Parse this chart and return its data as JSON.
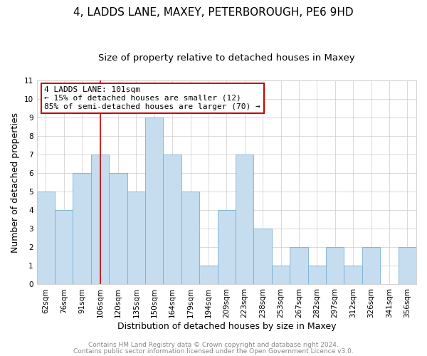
{
  "title": "4, LADDS LANE, MAXEY, PETERBOROUGH, PE6 9HD",
  "subtitle": "Size of property relative to detached houses in Maxey",
  "xlabel": "Distribution of detached houses by size in Maxey",
  "ylabel": "Number of detached properties",
  "bar_color": "#c5ddef",
  "bar_edge_color": "#7bafd4",
  "categories": [
    "62sqm",
    "76sqm",
    "91sqm",
    "106sqm",
    "120sqm",
    "135sqm",
    "150sqm",
    "164sqm",
    "179sqm",
    "194sqm",
    "209sqm",
    "223sqm",
    "238sqm",
    "253sqm",
    "267sqm",
    "282sqm",
    "297sqm",
    "312sqm",
    "326sqm",
    "341sqm",
    "356sqm"
  ],
  "values": [
    5,
    4,
    6,
    7,
    6,
    5,
    9,
    7,
    5,
    1,
    4,
    7,
    3,
    1,
    2,
    1,
    2,
    1,
    2,
    0,
    2
  ],
  "ylim": [
    0,
    11
  ],
  "yticks": [
    0,
    1,
    2,
    3,
    4,
    5,
    6,
    7,
    8,
    9,
    10,
    11
  ],
  "highlight_bar_index": 3,
  "highlight_line_color": "#cc0000",
  "annotation_title": "4 LADDS LANE: 101sqm",
  "annotation_line1": "← 15% of detached houses are smaller (12)",
  "annotation_line2": "85% of semi-detached houses are larger (70) →",
  "annotation_box_color": "#ffffff",
  "annotation_box_edge_color": "#cc0000",
  "footer_line1": "Contains HM Land Registry data © Crown copyright and database right 2024.",
  "footer_line2": "Contains public sector information licensed under the Open Government Licence v3.0.",
  "background_color": "#ffffff",
  "grid_color": "#cccccc",
  "title_fontsize": 11,
  "subtitle_fontsize": 9.5,
  "axis_label_fontsize": 9,
  "tick_fontsize": 7.5,
  "annotation_fontsize": 8,
  "footer_fontsize": 6.5
}
